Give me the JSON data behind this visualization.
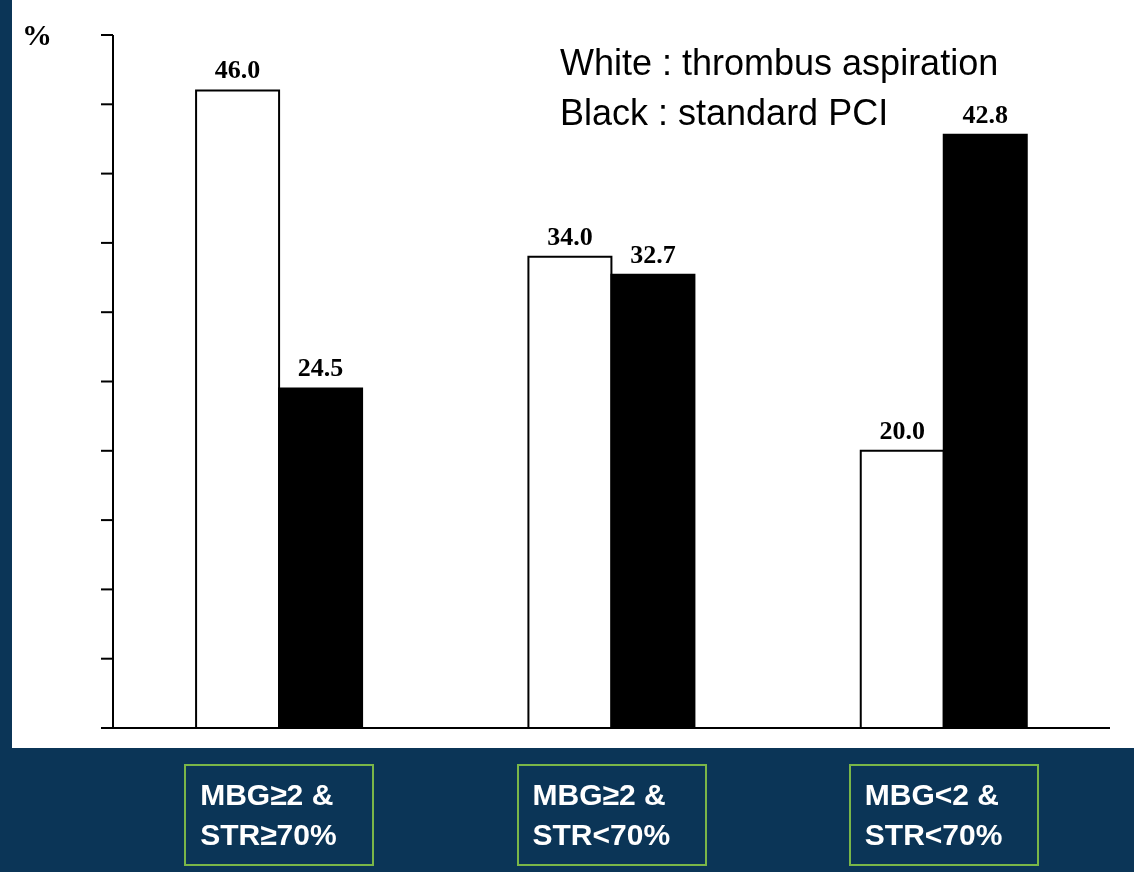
{
  "chart_data": {
    "type": "bar",
    "ylabel": "%",
    "categories": [
      "MBG≥2 & STR≥70%",
      "MBG≥2 & STR<70%",
      "MBG<2 & STR<70%"
    ],
    "series": [
      {
        "color": "#ffffff",
        "values": [
          46.0,
          34.0,
          20.0
        ],
        "value_labels": [
          "46.0",
          "34.0",
          "20.0"
        ]
      },
      {
        "color": "#000000",
        "values": [
          24.5,
          32.7,
          42.8
        ],
        "value_labels": [
          "24.5",
          "32.7",
          "42.8"
        ]
      }
    ],
    "ylim": [
      0,
      50
    ],
    "yticks": [
      {
        "value": 0,
        "label": null
      },
      {
        "value": 5,
        "label": null
      },
      {
        "value": 10,
        "label": null
      },
      {
        "value": 15,
        "label": null
      },
      {
        "value": 20,
        "label": null
      },
      {
        "value": 25,
        "label": null
      },
      {
        "value": 30,
        "label": null
      },
      {
        "value": 35,
        "label": null
      },
      {
        "value": 40,
        "label": null
      },
      {
        "value": 45,
        "label": null
      },
      {
        "value": 50,
        "label": null
      }
    ],
    "grid": false,
    "annotations": [
      "White : thrombus aspiration",
      "Black : standard PCI"
    ]
  }
}
